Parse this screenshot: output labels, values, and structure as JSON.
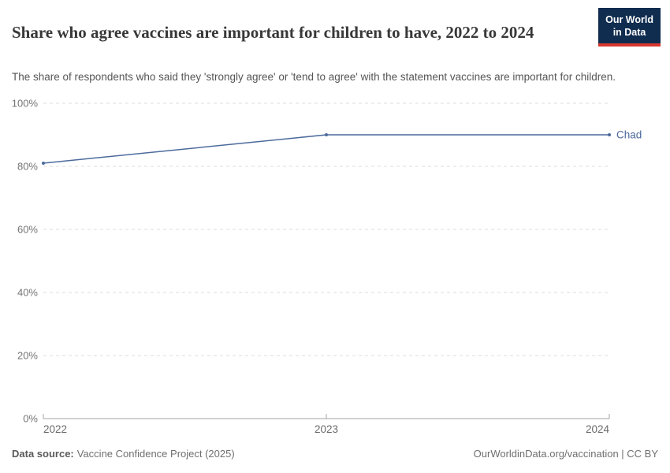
{
  "header": {
    "title": "Share who agree vaccines are important for children to have, 2022 to 2024",
    "subtitle": "The share of respondents who said they 'strongly agree' or 'tend to agree' with the statement vaccines are important for children.",
    "logo": {
      "line1": "Our World",
      "line2": "in Data",
      "bg_color": "#102d50",
      "accent_color": "#d7382e"
    }
  },
  "chart_data": {
    "type": "line",
    "title": "Share who agree vaccines are important for children to have, 2022 to 2024",
    "x": [
      2022,
      2023,
      2024
    ],
    "xtick_labels": [
      "2022",
      "2023",
      "2024"
    ],
    "series": [
      {
        "name": "Chad",
        "values": [
          81,
          90,
          90
        ],
        "color": "#4c6a9c"
      }
    ],
    "ylim": [
      0,
      100
    ],
    "yticks": [
      0,
      20,
      40,
      60,
      80,
      100
    ],
    "ytick_labels": [
      "0%",
      "20%",
      "40%",
      "60%",
      "80%",
      "100%"
    ],
    "grid": "dashed horizontal gridlines, solid x-axis baseline",
    "legend_position": "label at end of line",
    "grid_color": "#dcdcdc",
    "axis_color": "#a3a3a3",
    "tick_label_color": "#757575"
  },
  "footer": {
    "source_label": "Data source:",
    "source_value": "Vaccine Confidence Project (2025)",
    "attribution": "OurWorldinData.org/vaccination | CC BY"
  }
}
